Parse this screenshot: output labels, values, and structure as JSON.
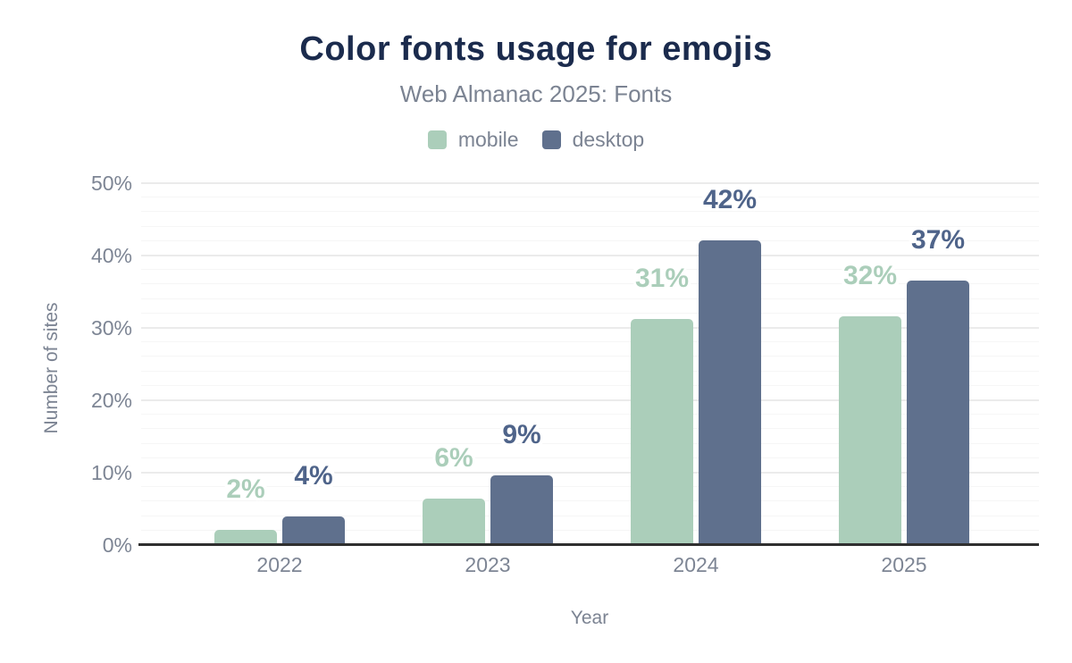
{
  "header": {
    "title": "Color fonts usage for emojis",
    "subtitle": "Web Almanac 2025: Fonts"
  },
  "legend": {
    "items": [
      {
        "label": "mobile",
        "color": "#abceba"
      },
      {
        "label": "desktop",
        "color": "#5f708d"
      }
    ]
  },
  "chart_data": {
    "type": "bar",
    "title": "Color fonts usage for emojis",
    "subtitle": "Web Almanac 2025: Fonts",
    "xlabel": "Year",
    "ylabel": "Number of sites",
    "categories": [
      "2022",
      "2023",
      "2024",
      "2025"
    ],
    "series": [
      {
        "name": "mobile",
        "color": "#abceba",
        "label_color": "#abceba",
        "values": [
          2,
          6,
          31,
          32
        ],
        "labels": [
          "2%",
          "6%",
          "31%",
          "32%"
        ],
        "bar_heights_pct": [
          2.1,
          6.4,
          31.2,
          31.6
        ]
      },
      {
        "name": "desktop",
        "color": "#5f708d",
        "label_color": "#4f648a",
        "values": [
          4,
          9,
          42,
          37
        ],
        "labels": [
          "4%",
          "9%",
          "42%",
          "37%"
        ],
        "bar_heights_pct": [
          3.9,
          9.6,
          42.1,
          36.5
        ]
      }
    ],
    "ylim": [
      0,
      50
    ],
    "yticks": [
      "0%",
      "10%",
      "20%",
      "30%",
      "40%",
      "50%"
    ],
    "grid": {
      "major_step_pct": 10,
      "minor_step_pct": 2
    },
    "legend_position": "top",
    "theme": {
      "title_color": "#1b2b4d",
      "muted_text_color": "#7b8392",
      "tick_color": "#7d8594",
      "major_grid_color": "#ebebeb",
      "minor_grid_color": "#f6f6f6",
      "baseline_color": "#303030",
      "background": "#ffffff"
    }
  }
}
